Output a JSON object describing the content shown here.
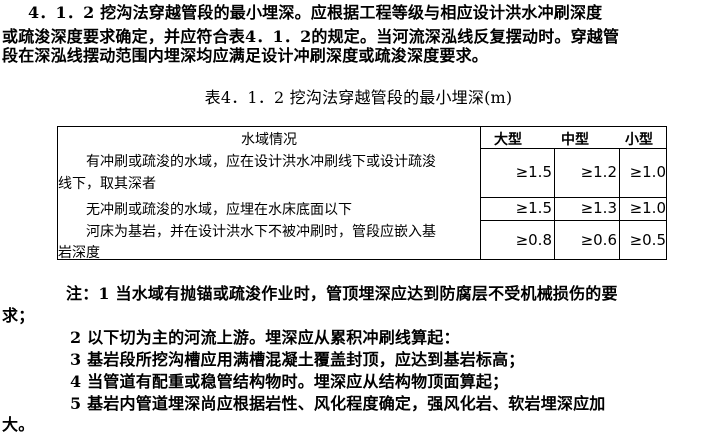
{
  "paragraph": {
    "lines": [
      "4．1．2 挖沟法穿越管段的最小埋深。应根据工程等级与相应设计洪水冲刷深度",
      "或疏浚深度要求确定，并应符合表4．1．2的规定。当河流深泓线反复摆动时。穿越管",
      "段在深泓线摆动范围内埋深均应满足设计冲刷深度或疏浚深度要求。"
    ]
  },
  "table": {
    "caption": "表4．1．2 挖沟法穿越管段的最小埋深(m)",
    "headers": [
      "水域情况",
      "大型",
      "中型",
      "小型"
    ],
    "rows": [
      {
        "desc": [
          "有冲刷或疏浚的水域，应在设计洪水冲刷线下或设计疏浚",
          "线下，取其深者"
        ],
        "values": [
          "≥1.5",
          "≥1.2",
          "≥1.0"
        ]
      },
      {
        "desc": [
          "无冲刷或疏浚的水域，应埋在水床底面以下"
        ],
        "values": [
          "≥1.5",
          "≥1.3",
          "≥1.0"
        ]
      },
      {
        "desc": [
          "河床为基岩，并在设计洪水下不被冲刷时，管段应嵌入基",
          "岩深度"
        ],
        "values": [
          "≥0.8",
          "≥0.6",
          "≥0.5"
        ]
      }
    ]
  },
  "notes": {
    "lines": [
      "注：1 当水域有抛锚或疏浚作业时，管顶埋深应达到防腐层不受机械损伤的要",
      "求；",
      "2 以下切为主的河流上游。埋深应从累积冲刷线算起：",
      "3 基岩段所挖沟槽应用满槽混凝土覆盖封顶，应达到基岩标高；",
      "4 当管道有配重或稳管结构物时。埋深应从结构物顶面算起；",
      "5 基岩内管道埋深尚应根据岩性、风化程度确定，强风化岩、软岩埋深应加",
      "大。"
    ]
  }
}
